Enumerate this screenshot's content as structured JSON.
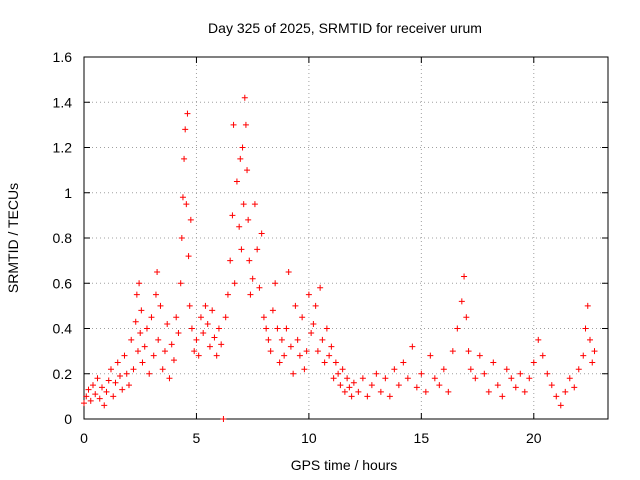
{
  "chart_data": {
    "type": "scatter",
    "title": "Day 325 of 2025, SRMTID for receiver urum",
    "xlabel": "GPS time / hours",
    "ylabel": "SRMTID / TECUs",
    "xlim": [
      0,
      23.3
    ],
    "ylim": [
      0,
      1.6
    ],
    "xticks": [
      0,
      5,
      10,
      15,
      20
    ],
    "xtick_labels": [
      "0",
      "5",
      "10",
      "15",
      "20"
    ],
    "yticks": [
      0,
      0.2,
      0.4,
      0.6,
      0.8,
      1.0,
      1.2,
      1.4,
      1.6
    ],
    "ytick_labels": [
      "0",
      "0.2",
      "0.4",
      "0.6",
      "0.8",
      "1",
      "1.2",
      "1.4",
      "1.6"
    ],
    "grid": true,
    "marker": "plus",
    "color": "#ff0000",
    "series": [
      {
        "name": "SRMTID",
        "points": [
          [
            0.0,
            0.07
          ],
          [
            0.1,
            0.1
          ],
          [
            0.2,
            0.13
          ],
          [
            0.3,
            0.08
          ],
          [
            0.4,
            0.15
          ],
          [
            0.5,
            0.11
          ],
          [
            0.6,
            0.18
          ],
          [
            0.7,
            0.09
          ],
          [
            0.8,
            0.14
          ],
          [
            0.9,
            0.06
          ],
          [
            1.0,
            0.12
          ],
          [
            1.1,
            0.17
          ],
          [
            1.2,
            0.22
          ],
          [
            1.3,
            0.1
          ],
          [
            1.4,
            0.16
          ],
          [
            1.5,
            0.25
          ],
          [
            1.6,
            0.19
          ],
          [
            1.7,
            0.13
          ],
          [
            1.8,
            0.28
          ],
          [
            1.9,
            0.2
          ],
          [
            2.0,
            0.15
          ],
          [
            2.1,
            0.35
          ],
          [
            2.2,
            0.22
          ],
          [
            2.3,
            0.43
          ],
          [
            2.35,
            0.55
          ],
          [
            2.4,
            0.3
          ],
          [
            2.45,
            0.6
          ],
          [
            2.5,
            0.38
          ],
          [
            2.55,
            0.48
          ],
          [
            2.6,
            0.25
          ],
          [
            2.7,
            0.32
          ],
          [
            2.8,
            0.4
          ],
          [
            2.9,
            0.2
          ],
          [
            3.0,
            0.45
          ],
          [
            3.1,
            0.28
          ],
          [
            3.2,
            0.55
          ],
          [
            3.25,
            0.65
          ],
          [
            3.3,
            0.35
          ],
          [
            3.4,
            0.5
          ],
          [
            3.5,
            0.22
          ],
          [
            3.6,
            0.3
          ],
          [
            3.7,
            0.42
          ],
          [
            3.8,
            0.18
          ],
          [
            3.9,
            0.33
          ],
          [
            4.0,
            0.26
          ],
          [
            4.1,
            0.45
          ],
          [
            4.2,
            0.38
          ],
          [
            4.3,
            0.6
          ],
          [
            4.35,
            0.8
          ],
          [
            4.4,
            0.98
          ],
          [
            4.45,
            1.15
          ],
          [
            4.5,
            1.28
          ],
          [
            4.55,
            0.95
          ],
          [
            4.6,
            1.35
          ],
          [
            4.65,
            0.72
          ],
          [
            4.7,
            0.5
          ],
          [
            4.75,
            0.88
          ],
          [
            4.8,
            0.4
          ],
          [
            4.9,
            0.3
          ],
          [
            5.0,
            0.35
          ],
          [
            5.1,
            0.28
          ],
          [
            5.2,
            0.45
          ],
          [
            5.3,
            0.38
          ],
          [
            5.4,
            0.5
          ],
          [
            5.5,
            0.42
          ],
          [
            5.6,
            0.32
          ],
          [
            5.7,
            0.48
          ],
          [
            5.8,
            0.36
          ],
          [
            5.9,
            0.28
          ],
          [
            6.0,
            0.4
          ],
          [
            6.1,
            0.33
          ],
          [
            6.2,
            0.0
          ],
          [
            6.3,
            0.45
          ],
          [
            6.4,
            0.55
          ],
          [
            6.5,
            0.7
          ],
          [
            6.6,
            0.9
          ],
          [
            6.65,
            1.3
          ],
          [
            6.7,
            0.6
          ],
          [
            6.8,
            1.05
          ],
          [
            6.9,
            0.85
          ],
          [
            6.95,
            1.15
          ],
          [
            7.0,
            0.75
          ],
          [
            7.05,
            1.2
          ],
          [
            7.1,
            0.95
          ],
          [
            7.15,
            1.42
          ],
          [
            7.2,
            1.3
          ],
          [
            7.25,
            1.1
          ],
          [
            7.3,
            0.88
          ],
          [
            7.35,
            0.7
          ],
          [
            7.4,
            0.55
          ],
          [
            7.5,
            0.62
          ],
          [
            7.6,
            0.95
          ],
          [
            7.7,
            0.75
          ],
          [
            7.8,
            0.58
          ],
          [
            7.9,
            0.82
          ],
          [
            8.0,
            0.45
          ],
          [
            8.1,
            0.4
          ],
          [
            8.2,
            0.35
          ],
          [
            8.3,
            0.3
          ],
          [
            8.4,
            0.48
          ],
          [
            8.5,
            0.6
          ],
          [
            8.6,
            0.4
          ],
          [
            8.7,
            0.25
          ],
          [
            8.8,
            0.35
          ],
          [
            8.9,
            0.28
          ],
          [
            9.0,
            0.4
          ],
          [
            9.1,
            0.65
          ],
          [
            9.2,
            0.32
          ],
          [
            9.3,
            0.2
          ],
          [
            9.4,
            0.5
          ],
          [
            9.5,
            0.35
          ],
          [
            9.6,
            0.28
          ],
          [
            9.7,
            0.45
          ],
          [
            9.8,
            0.22
          ],
          [
            9.9,
            0.3
          ],
          [
            10.0,
            0.55
          ],
          [
            10.1,
            0.38
          ],
          [
            10.2,
            0.42
          ],
          [
            10.3,
            0.5
          ],
          [
            10.4,
            0.3
          ],
          [
            10.5,
            0.58
          ],
          [
            10.6,
            0.35
          ],
          [
            10.7,
            0.25
          ],
          [
            10.8,
            0.4
          ],
          [
            10.9,
            0.28
          ],
          [
            11.0,
            0.32
          ],
          [
            11.1,
            0.18
          ],
          [
            11.2,
            0.25
          ],
          [
            11.3,
            0.2
          ],
          [
            11.4,
            0.15
          ],
          [
            11.5,
            0.22
          ],
          [
            11.6,
            0.12
          ],
          [
            11.7,
            0.18
          ],
          [
            11.8,
            0.14
          ],
          [
            11.9,
            0.1
          ],
          [
            12.0,
            0.16
          ],
          [
            12.2,
            0.12
          ],
          [
            12.4,
            0.18
          ],
          [
            12.6,
            0.1
          ],
          [
            12.8,
            0.15
          ],
          [
            13.0,
            0.2
          ],
          [
            13.2,
            0.12
          ],
          [
            13.4,
            0.18
          ],
          [
            13.6,
            0.1
          ],
          [
            13.8,
            0.22
          ],
          [
            14.0,
            0.15
          ],
          [
            14.2,
            0.25
          ],
          [
            14.4,
            0.18
          ],
          [
            14.6,
            0.32
          ],
          [
            14.8,
            0.14
          ],
          [
            15.0,
            0.2
          ],
          [
            15.2,
            0.12
          ],
          [
            15.4,
            0.28
          ],
          [
            15.6,
            0.18
          ],
          [
            15.8,
            0.15
          ],
          [
            16.0,
            0.22
          ],
          [
            16.2,
            0.12
          ],
          [
            16.4,
            0.3
          ],
          [
            16.6,
            0.4
          ],
          [
            16.8,
            0.52
          ],
          [
            16.9,
            0.63
          ],
          [
            17.0,
            0.45
          ],
          [
            17.1,
            0.3
          ],
          [
            17.2,
            0.22
          ],
          [
            17.4,
            0.18
          ],
          [
            17.6,
            0.28
          ],
          [
            17.8,
            0.2
          ],
          [
            18.0,
            0.12
          ],
          [
            18.2,
            0.25
          ],
          [
            18.4,
            0.15
          ],
          [
            18.6,
            0.1
          ],
          [
            18.8,
            0.22
          ],
          [
            19.0,
            0.18
          ],
          [
            19.2,
            0.14
          ],
          [
            19.4,
            0.2
          ],
          [
            19.6,
            0.12
          ],
          [
            19.8,
            0.18
          ],
          [
            20.0,
            0.25
          ],
          [
            20.2,
            0.35
          ],
          [
            20.4,
            0.28
          ],
          [
            20.6,
            0.2
          ],
          [
            20.8,
            0.15
          ],
          [
            21.0,
            0.1
          ],
          [
            21.2,
            0.06
          ],
          [
            21.4,
            0.12
          ],
          [
            21.6,
            0.18
          ],
          [
            21.8,
            0.14
          ],
          [
            22.0,
            0.22
          ],
          [
            22.2,
            0.28
          ],
          [
            22.3,
            0.4
          ],
          [
            22.4,
            0.5
          ],
          [
            22.5,
            0.35
          ],
          [
            22.6,
            0.25
          ],
          [
            22.7,
            0.3
          ]
        ]
      }
    ]
  }
}
